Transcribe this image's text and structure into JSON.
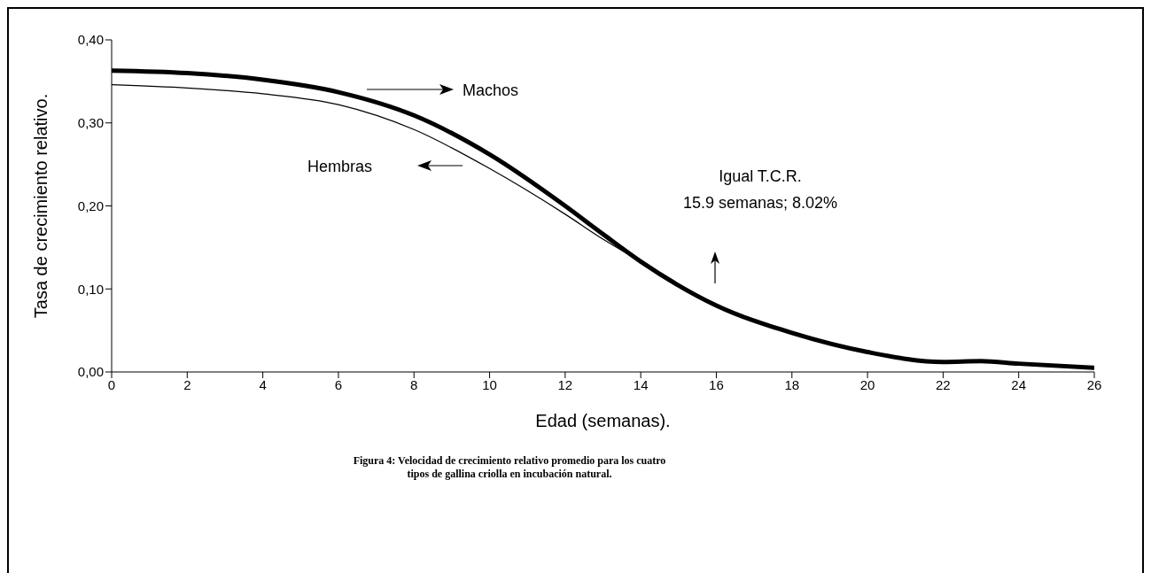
{
  "chart_data": {
    "type": "line",
    "xlabel": "Edad (semanas).",
    "ylabel": "Tasa de crecimiento relativo.",
    "x": [
      0,
      2,
      4,
      6,
      8,
      10,
      12,
      13,
      14,
      16,
      18,
      20,
      22,
      23,
      24,
      26
    ],
    "series": [
      {
        "name": "Machos",
        "color": "#000000",
        "values": [
          0.363,
          0.36,
          0.352,
          0.337,
          0.309,
          0.262,
          0.2,
          0.166,
          0.133,
          0.08,
          0.047,
          0.024,
          0.012,
          0.013,
          0.01,
          0.005
        ]
      },
      {
        "name": "Hembras",
        "color": "#000000",
        "values": [
          0.346,
          0.342,
          0.335,
          0.322,
          0.292,
          0.245,
          0.19,
          0.16,
          0.133,
          0.08,
          0.047,
          0.024,
          0.012,
          0.013,
          0.01,
          0.005
        ]
      }
    ],
    "xlim": [
      0,
      26
    ],
    "xticks": [
      0,
      2,
      4,
      6,
      8,
      10,
      12,
      14,
      16,
      18,
      20,
      22,
      24,
      26
    ],
    "ylim": [
      0,
      0.4
    ],
    "yticks": [
      {
        "value": 0,
        "label": "0,00"
      },
      {
        "value": 0.1,
        "label": "0,10"
      },
      {
        "value": 0.2,
        "label": "0,20"
      },
      {
        "value": 0.3,
        "label": "0,30"
      },
      {
        "value": 0.4,
        "label": "0,40"
      }
    ],
    "grid": false,
    "legend": "top",
    "marker": "none",
    "line_style": "solid",
    "annotations": [
      "Igual T.C.R.\n15.9 semanas; 8.02%",
      "Figura 4: Velocidad de crecimiento relativo promedio  para los cuatro\ntipos de gallina criolla en incubación natural."
    ]
  }
}
